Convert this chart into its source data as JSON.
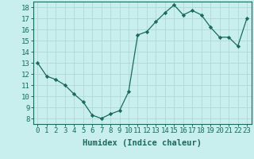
{
  "x": [
    0,
    1,
    2,
    3,
    4,
    5,
    6,
    7,
    8,
    9,
    10,
    11,
    12,
    13,
    14,
    15,
    16,
    17,
    18,
    19,
    20,
    21,
    22,
    23
  ],
  "y": [
    13.0,
    11.8,
    11.5,
    11.0,
    10.2,
    9.5,
    8.3,
    8.0,
    8.4,
    8.7,
    10.4,
    15.5,
    15.8,
    16.7,
    17.5,
    18.2,
    17.3,
    17.7,
    17.3,
    16.2,
    15.3,
    15.3,
    14.5,
    17.0
  ],
  "xlabel": "Humidex (Indice chaleur)",
  "ylim": [
    7.5,
    18.5
  ],
  "xlim": [
    -0.5,
    23.5
  ],
  "yticks": [
    8,
    9,
    10,
    11,
    12,
    13,
    14,
    15,
    16,
    17,
    18
  ],
  "xticks": [
    0,
    1,
    2,
    3,
    4,
    5,
    6,
    7,
    8,
    9,
    10,
    11,
    12,
    13,
    14,
    15,
    16,
    17,
    18,
    19,
    20,
    21,
    22,
    23
  ],
  "xtick_labels": [
    "0",
    "1",
    "2",
    "3",
    "4",
    "5",
    "6",
    "7",
    "8",
    "9",
    "10",
    "11",
    "12",
    "13",
    "14",
    "15",
    "16",
    "17",
    "18",
    "19",
    "20",
    "21",
    "22",
    "23"
  ],
  "line_color": "#1a6b5a",
  "marker": "D",
  "marker_size": 2.2,
  "bg_color": "#c8eeee",
  "grid_color": "#b0d8d8",
  "xlabel_fontsize": 7.5,
  "tick_fontsize": 6.5
}
